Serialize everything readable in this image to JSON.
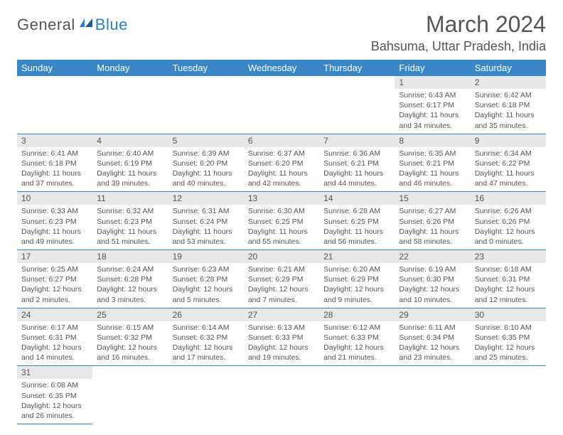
{
  "logo": {
    "text1": "General",
    "text2": "Blue"
  },
  "title": "March 2024",
  "location": "Bahsuma, Uttar Pradesh, India",
  "colors": {
    "header_bg": "#3a87c7",
    "header_text": "#ffffff",
    "daynum_bg": "#e8e8e8",
    "border": "#3a87c7",
    "text": "#555555",
    "logo_blue": "#2a7fc9"
  },
  "weekdays": [
    "Sunday",
    "Monday",
    "Tuesday",
    "Wednesday",
    "Thursday",
    "Friday",
    "Saturday"
  ],
  "weeks": [
    [
      null,
      null,
      null,
      null,
      null,
      {
        "n": "1",
        "sunrise": "6:43 AM",
        "sunset": "6:17 PM",
        "day_h": "11",
        "day_m": "34"
      },
      {
        "n": "2",
        "sunrise": "6:42 AM",
        "sunset": "6:18 PM",
        "day_h": "11",
        "day_m": "35"
      }
    ],
    [
      {
        "n": "3",
        "sunrise": "6:41 AM",
        "sunset": "6:18 PM",
        "day_h": "11",
        "day_m": "37"
      },
      {
        "n": "4",
        "sunrise": "6:40 AM",
        "sunset": "6:19 PM",
        "day_h": "11",
        "day_m": "39"
      },
      {
        "n": "5",
        "sunrise": "6:39 AM",
        "sunset": "6:20 PM",
        "day_h": "11",
        "day_m": "40"
      },
      {
        "n": "6",
        "sunrise": "6:37 AM",
        "sunset": "6:20 PM",
        "day_h": "11",
        "day_m": "42"
      },
      {
        "n": "7",
        "sunrise": "6:36 AM",
        "sunset": "6:21 PM",
        "day_h": "11",
        "day_m": "44"
      },
      {
        "n": "8",
        "sunrise": "6:35 AM",
        "sunset": "6:21 PM",
        "day_h": "11",
        "day_m": "46"
      },
      {
        "n": "9",
        "sunrise": "6:34 AM",
        "sunset": "6:22 PM",
        "day_h": "11",
        "day_m": "47"
      }
    ],
    [
      {
        "n": "10",
        "sunrise": "6:33 AM",
        "sunset": "6:23 PM",
        "day_h": "11",
        "day_m": "49"
      },
      {
        "n": "11",
        "sunrise": "6:32 AM",
        "sunset": "6:23 PM",
        "day_h": "11",
        "day_m": "51"
      },
      {
        "n": "12",
        "sunrise": "6:31 AM",
        "sunset": "6:24 PM",
        "day_h": "11",
        "day_m": "53"
      },
      {
        "n": "13",
        "sunrise": "6:30 AM",
        "sunset": "6:25 PM",
        "day_h": "11",
        "day_m": "55"
      },
      {
        "n": "14",
        "sunrise": "6:28 AM",
        "sunset": "6:25 PM",
        "day_h": "11",
        "day_m": "56"
      },
      {
        "n": "15",
        "sunrise": "6:27 AM",
        "sunset": "6:26 PM",
        "day_h": "11",
        "day_m": "58"
      },
      {
        "n": "16",
        "sunrise": "6:26 AM",
        "sunset": "6:26 PM",
        "day_h": "12",
        "day_m": "0"
      }
    ],
    [
      {
        "n": "17",
        "sunrise": "6:25 AM",
        "sunset": "6:27 PM",
        "day_h": "12",
        "day_m": "2"
      },
      {
        "n": "18",
        "sunrise": "6:24 AM",
        "sunset": "6:28 PM",
        "day_h": "12",
        "day_m": "3"
      },
      {
        "n": "19",
        "sunrise": "6:23 AM",
        "sunset": "6:28 PM",
        "day_h": "12",
        "day_m": "5"
      },
      {
        "n": "20",
        "sunrise": "6:21 AM",
        "sunset": "6:29 PM",
        "day_h": "12",
        "day_m": "7"
      },
      {
        "n": "21",
        "sunrise": "6:20 AM",
        "sunset": "6:29 PM",
        "day_h": "12",
        "day_m": "9"
      },
      {
        "n": "22",
        "sunrise": "6:19 AM",
        "sunset": "6:30 PM",
        "day_h": "12",
        "day_m": "10"
      },
      {
        "n": "23",
        "sunrise": "6:18 AM",
        "sunset": "6:31 PM",
        "day_h": "12",
        "day_m": "12"
      }
    ],
    [
      {
        "n": "24",
        "sunrise": "6:17 AM",
        "sunset": "6:31 PM",
        "day_h": "12",
        "day_m": "14"
      },
      {
        "n": "25",
        "sunrise": "6:15 AM",
        "sunset": "6:32 PM",
        "day_h": "12",
        "day_m": "16"
      },
      {
        "n": "26",
        "sunrise": "6:14 AM",
        "sunset": "6:32 PM",
        "day_h": "12",
        "day_m": "17"
      },
      {
        "n": "27",
        "sunrise": "6:13 AM",
        "sunset": "6:33 PM",
        "day_h": "12",
        "day_m": "19"
      },
      {
        "n": "28",
        "sunrise": "6:12 AM",
        "sunset": "6:33 PM",
        "day_h": "12",
        "day_m": "21"
      },
      {
        "n": "29",
        "sunrise": "6:11 AM",
        "sunset": "6:34 PM",
        "day_h": "12",
        "day_m": "23"
      },
      {
        "n": "30",
        "sunrise": "6:10 AM",
        "sunset": "6:35 PM",
        "day_h": "12",
        "day_m": "25"
      }
    ],
    [
      {
        "n": "31",
        "sunrise": "6:08 AM",
        "sunset": "6:35 PM",
        "day_h": "12",
        "day_m": "26"
      },
      null,
      null,
      null,
      null,
      null,
      null
    ]
  ]
}
